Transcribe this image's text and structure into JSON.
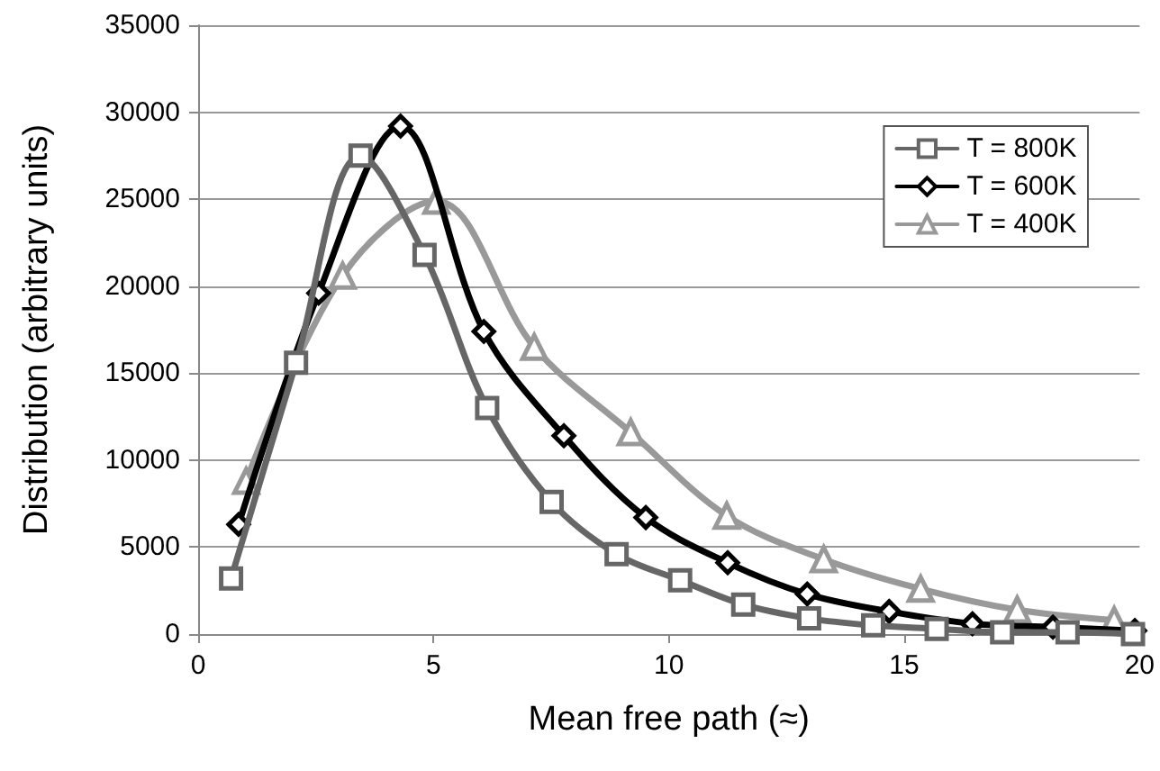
{
  "chart_data": {
    "type": "line",
    "xlabel": "Mean free path (≈)",
    "ylabel": "Distribution (arbitrary units)",
    "xlim": [
      0,
      20
    ],
    "xticks": [
      0,
      5,
      10,
      15,
      20
    ],
    "ylim": [
      0,
      35000
    ],
    "yticks": [
      0,
      5000,
      10000,
      15000,
      20000,
      25000,
      30000,
      35000
    ],
    "grid": "y",
    "legend": "top right",
    "line_style": "solid",
    "series": [
      {
        "name": "T = 800K",
        "color": "#666666",
        "marker": "square",
        "x": [
          0.7,
          2.08,
          3.45,
          4.81,
          6.14,
          7.51,
          8.89,
          10.24,
          11.58,
          12.98,
          14.34,
          15.69,
          17.08,
          18.47,
          19.86
        ],
        "values": [
          3200,
          15600,
          27500,
          21800,
          13000,
          7600,
          4600,
          3100,
          1700,
          900,
          500,
          300,
          100,
          100,
          0
        ]
      },
      {
        "name": "T = 600K",
        "color": "#000000",
        "marker": "diamond",
        "x": [
          0.86,
          2.56,
          4.3,
          6.07,
          7.77,
          9.51,
          11.25,
          12.94,
          14.68,
          16.45,
          18.16,
          19.9
        ],
        "values": [
          6300,
          19600,
          29200,
          17400,
          11400,
          6700,
          4100,
          2300,
          1300,
          600,
          400,
          200
        ]
      },
      {
        "name": "T = 400K",
        "color": "#999999",
        "marker": "triangle",
        "x": [
          1.02,
          3.07,
          5.06,
          7.14,
          9.19,
          11.23,
          13.29,
          15.35,
          17.4,
          19.46
        ],
        "values": [
          8800,
          20600,
          24900,
          16500,
          11600,
          6800,
          4300,
          2600,
          1400,
          800
        ]
      }
    ]
  }
}
